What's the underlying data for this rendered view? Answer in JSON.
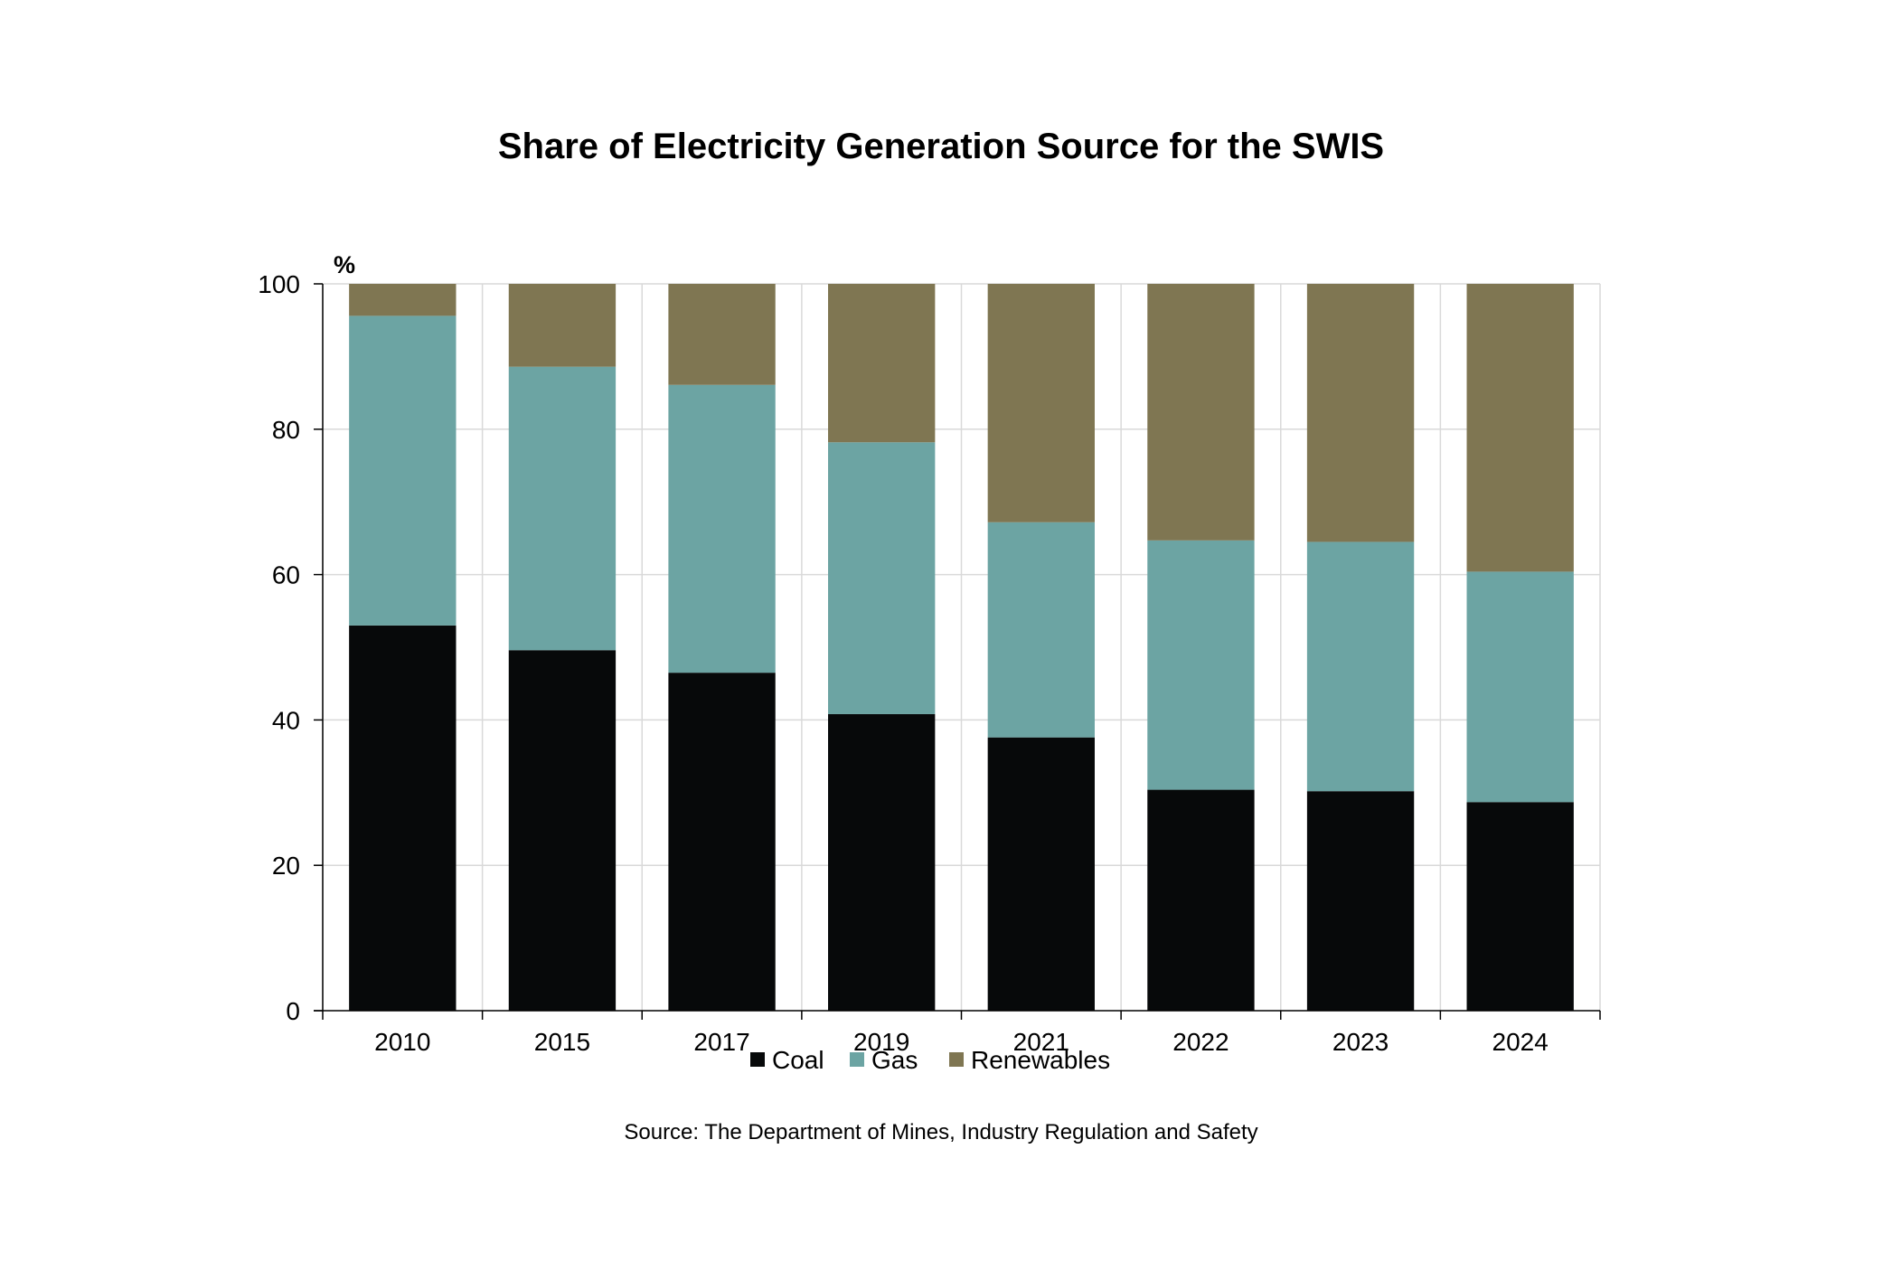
{
  "chart_data": {
    "type": "bar",
    "stacked": true,
    "title": "Share of Electricity Generation Source for the SWIS",
    "ylabel": "%",
    "xlabel": "",
    "ylim": [
      0,
      100
    ],
    "yticks": [
      "0",
      "20",
      "40",
      "60",
      "80",
      "100"
    ],
    "grid": true,
    "legend_position": "bottom",
    "categories": [
      "2010",
      "2015",
      "2017",
      "2019",
      "2021",
      "2022",
      "2023",
      "2024"
    ],
    "series": [
      {
        "name": "Coal",
        "color": "#07090a",
        "values": [
          53.0,
          49.6,
          46.5,
          40.8,
          37.6,
          30.4,
          30.2,
          28.7
        ]
      },
      {
        "name": "Gas",
        "color": "#6ca4a3",
        "values": [
          42.6,
          39.0,
          39.6,
          37.4,
          29.6,
          34.3,
          34.3,
          31.7
        ]
      },
      {
        "name": "Renewables",
        "color": "#7f7652",
        "values": [
          4.4,
          11.4,
          13.9,
          21.8,
          32.8,
          35.3,
          35.5,
          39.6
        ]
      }
    ],
    "source": "Source: The Department of Mines, Industry Regulation and Safety"
  }
}
